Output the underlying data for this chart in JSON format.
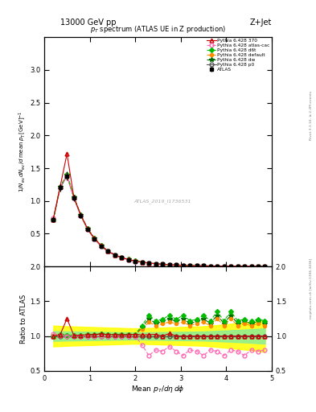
{
  "title_top": "13000 GeV pp",
  "title_right": "Z+Jet",
  "plot_title": "p_{T} spectrum (ATLAS UE in Z production)",
  "ylabel_main": "1/N_{ev} dN_{ev}/d mean p_{T} [GeV]^{-1}",
  "ylabel_ratio": "Ratio to ATLAS",
  "xlabel": "Mean p_{T}/dη dφ",
  "watermark": "ATLAS_2019_I1736531",
  "side_text1": "Rivet 3.1.10, ≥ 2.2M events",
  "side_text2": "mcplots.cern.ch [arXiv:1306.3436]",
  "x": [
    0.2,
    0.35,
    0.5,
    0.65,
    0.8,
    0.95,
    1.1,
    1.25,
    1.4,
    1.55,
    1.7,
    1.85,
    2.0,
    2.15,
    2.3,
    2.45,
    2.6,
    2.75,
    2.9,
    3.05,
    3.2,
    3.35,
    3.5,
    3.65,
    3.8,
    3.95,
    4.1,
    4.25,
    4.4,
    4.55,
    4.7,
    4.85
  ],
  "atlas_y": [
    0.72,
    1.2,
    1.38,
    1.05,
    0.78,
    0.57,
    0.42,
    0.31,
    0.23,
    0.175,
    0.135,
    0.105,
    0.082,
    0.065,
    0.052,
    0.042,
    0.034,
    0.027,
    0.022,
    0.018,
    0.015,
    0.012,
    0.01,
    0.008,
    0.007,
    0.006,
    0.005,
    0.004,
    0.0035,
    0.003,
    0.0025,
    0.002
  ],
  "atlas_yerr": [
    0.04,
    0.06,
    0.07,
    0.05,
    0.04,
    0.03,
    0.02,
    0.016,
    0.012,
    0.009,
    0.007,
    0.006,
    0.005,
    0.004,
    0.003,
    0.003,
    0.002,
    0.002,
    0.0015,
    0.0012,
    0.001,
    0.0009,
    0.0008,
    0.0007,
    0.0006,
    0.0005,
    0.0004,
    0.00035,
    0.0003,
    0.00025,
    0.0002,
    0.00018
  ],
  "py370_y": [
    0.72,
    1.22,
    1.72,
    1.06,
    0.79,
    0.58,
    0.43,
    0.32,
    0.235,
    0.178,
    0.137,
    0.107,
    0.084,
    0.066,
    0.053,
    0.043,
    0.034,
    0.028,
    0.022,
    0.018,
    0.015,
    0.012,
    0.01,
    0.008,
    0.007,
    0.006,
    0.005,
    0.004,
    0.0035,
    0.003,
    0.0025,
    0.002
  ],
  "pyatlas_y": [
    0.74,
    1.21,
    1.38,
    1.05,
    0.78,
    0.57,
    0.42,
    0.31,
    0.23,
    0.175,
    0.135,
    0.105,
    0.082,
    0.065,
    0.052,
    0.042,
    0.034,
    0.027,
    0.022,
    0.018,
    0.015,
    0.012,
    0.01,
    0.008,
    0.007,
    0.006,
    0.005,
    0.004,
    0.0035,
    0.003,
    0.0025,
    0.002
  ],
  "pyd6t_y": [
    0.72,
    1.22,
    1.4,
    1.06,
    0.79,
    0.58,
    0.43,
    0.32,
    0.235,
    0.178,
    0.137,
    0.107,
    0.084,
    0.066,
    0.053,
    0.043,
    0.034,
    0.028,
    0.022,
    0.018,
    0.015,
    0.012,
    0.01,
    0.008,
    0.007,
    0.006,
    0.005,
    0.004,
    0.0035,
    0.003,
    0.0025,
    0.002
  ],
  "pydefault_y": [
    0.73,
    1.22,
    1.4,
    1.06,
    0.79,
    0.58,
    0.43,
    0.32,
    0.235,
    0.178,
    0.137,
    0.107,
    0.084,
    0.066,
    0.053,
    0.043,
    0.034,
    0.028,
    0.022,
    0.018,
    0.015,
    0.012,
    0.01,
    0.008,
    0.007,
    0.006,
    0.005,
    0.004,
    0.0035,
    0.003,
    0.0025,
    0.002
  ],
  "pydw_y": [
    0.72,
    1.22,
    1.4,
    1.06,
    0.79,
    0.58,
    0.43,
    0.32,
    0.235,
    0.178,
    0.137,
    0.107,
    0.084,
    0.066,
    0.053,
    0.043,
    0.034,
    0.028,
    0.022,
    0.018,
    0.015,
    0.012,
    0.01,
    0.008,
    0.007,
    0.006,
    0.005,
    0.004,
    0.0035,
    0.003,
    0.0025,
    0.002
  ],
  "pyp0_y": [
    0.72,
    1.2,
    1.38,
    1.05,
    0.78,
    0.57,
    0.42,
    0.31,
    0.23,
    0.175,
    0.135,
    0.105,
    0.082,
    0.065,
    0.052,
    0.042,
    0.034,
    0.027,
    0.022,
    0.018,
    0.015,
    0.012,
    0.01,
    0.008,
    0.007,
    0.006,
    0.005,
    0.004,
    0.0035,
    0.003,
    0.0025,
    0.002
  ],
  "ratio_370": [
    1.0,
    1.02,
    1.25,
    1.01,
    1.01,
    1.02,
    1.02,
    1.03,
    1.02,
    1.02,
    1.015,
    1.019,
    1.024,
    1.015,
    1.019,
    1.024,
    1.0,
    1.037,
    1.0,
    1.0,
    1.0,
    1.0,
    1.0,
    1.0,
    1.0,
    1.0,
    1.0,
    1.0,
    1.0,
    1.0,
    1.0,
    1.0
  ],
  "ratio_atlas_cac": [
    1.03,
    1.01,
    1.0,
    1.0,
    1.0,
    1.0,
    1.0,
    1.0,
    1.0,
    1.0,
    1.0,
    1.0,
    1.0,
    0.87,
    0.72,
    0.8,
    0.78,
    0.85,
    0.78,
    0.72,
    0.8,
    0.78,
    0.72,
    0.8,
    0.78,
    0.72,
    0.8,
    0.78,
    0.72,
    0.8,
    0.78,
    0.8
  ],
  "ratio_d6t": [
    1.0,
    1.02,
    1.01,
    1.01,
    1.01,
    1.02,
    1.02,
    1.03,
    1.02,
    1.02,
    1.015,
    1.019,
    1.024,
    1.15,
    1.3,
    1.22,
    1.24,
    1.3,
    1.24,
    1.3,
    1.22,
    1.24,
    1.3,
    1.22,
    1.35,
    1.22,
    1.35,
    1.22,
    1.24,
    1.22,
    1.24,
    1.22
  ],
  "ratio_default": [
    1.01,
    1.02,
    1.01,
    1.01,
    1.01,
    1.02,
    1.02,
    1.03,
    1.02,
    1.02,
    1.015,
    1.019,
    1.024,
    1.1,
    1.2,
    1.15,
    1.18,
    1.2,
    1.18,
    1.2,
    1.15,
    1.18,
    1.2,
    1.15,
    1.25,
    1.15,
    1.25,
    1.15,
    1.18,
    1.15,
    1.18,
    1.15
  ],
  "ratio_dw": [
    1.0,
    1.02,
    1.01,
    1.01,
    1.01,
    1.02,
    1.02,
    1.03,
    1.02,
    1.02,
    1.015,
    1.019,
    1.024,
    1.12,
    1.25,
    1.18,
    1.21,
    1.25,
    1.21,
    1.25,
    1.18,
    1.21,
    1.25,
    1.18,
    1.3,
    1.18,
    1.3,
    1.18,
    1.21,
    1.18,
    1.21,
    1.18
  ],
  "ratio_p0": [
    1.0,
    1.0,
    1.0,
    1.0,
    1.0,
    1.0,
    1.0,
    1.0,
    1.0,
    1.0,
    1.0,
    1.0,
    1.0,
    1.0,
    1.0,
    1.0,
    1.0,
    1.0,
    1.0,
    1.0,
    1.0,
    1.0,
    1.0,
    1.0,
    1.0,
    1.0,
    1.0,
    1.0,
    1.0,
    1.0,
    1.0,
    1.0
  ],
  "band_x": [
    0.2,
    0.5,
    1.0,
    1.5,
    2.0,
    2.5,
    3.0,
    3.5,
    4.0,
    4.5,
    4.85
  ],
  "band_yellow_lo": [
    0.85,
    0.86,
    0.87,
    0.88,
    0.89,
    0.88,
    0.87,
    0.86,
    0.83,
    0.8,
    0.77
  ],
  "band_yellow_hi": [
    1.15,
    1.14,
    1.13,
    1.12,
    1.11,
    1.12,
    1.13,
    1.14,
    1.17,
    1.2,
    1.23
  ],
  "band_green_lo": [
    0.93,
    0.935,
    0.94,
    0.945,
    0.95,
    0.945,
    0.94,
    0.935,
    0.92,
    0.905,
    0.89
  ],
  "band_green_hi": [
    1.07,
    1.065,
    1.06,
    1.055,
    1.05,
    1.055,
    1.06,
    1.065,
    1.08,
    1.095,
    1.11
  ],
  "color_370": "#cc0000",
  "color_atlas_cac": "#ff69b4",
  "color_d6t": "#00bb00",
  "color_default": "#ff8c00",
  "color_dw": "#006600",
  "color_p0": "#555555",
  "color_atlas": "#000000",
  "xlim": [
    0,
    5.0
  ],
  "ylim_main": [
    0.0,
    3.5
  ],
  "ylim_ratio": [
    0.5,
    2.0
  ],
  "yticks_main": [
    0.5,
    1.0,
    1.5,
    2.0,
    2.5,
    3.0
  ],
  "yticks_ratio": [
    0.5,
    1.0,
    1.5,
    2.0
  ],
  "xticks": [
    0,
    1,
    2,
    3,
    4,
    5
  ]
}
